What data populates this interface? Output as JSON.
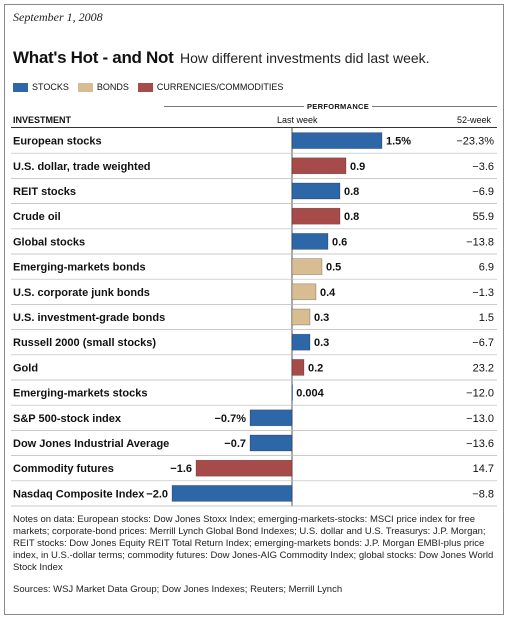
{
  "date": "September 1, 2008",
  "title": "What's Hot - and Not",
  "subtitle": "How different investments did last week.",
  "legend": [
    {
      "label": "STOCKS",
      "color": "#2e67a8"
    },
    {
      "label": "BONDS",
      "color": "#d7bd91"
    },
    {
      "label": "CURRENCIES/COMMODITIES",
      "color": "#a74a4a"
    }
  ],
  "headers": {
    "performance": "PERFORMANCE",
    "investment": "INVESTMENT",
    "last_week": "Last week",
    "week52": "52-week"
  },
  "chart_data": {
    "type": "bar",
    "orientation": "horizontal",
    "title": "What's Hot - and Not",
    "subtitle": "How different investments did last week.",
    "categories": [
      "European stocks",
      "U.S. dollar, trade weighted",
      "REIT stocks",
      "Crude oil",
      "Global stocks",
      "Emerging-markets bonds",
      "U.S. corporate junk bonds",
      "U.S. investment-grade bonds",
      "Russell 2000 (small stocks)",
      "Gold",
      "Emerging-markets stocks",
      "S&P 500-stock index",
      "Dow Jones Industrial Average",
      "Commodity futures",
      "Nasdaq Composite Index"
    ],
    "classes": [
      "stocks",
      "currencies",
      "stocks",
      "commodities",
      "stocks",
      "bonds",
      "bonds",
      "bonds",
      "stocks",
      "commodities",
      "stocks",
      "stocks",
      "stocks",
      "commodities",
      "stocks"
    ],
    "values": [
      1.5,
      0.9,
      0.8,
      0.8,
      0.6,
      0.5,
      0.4,
      0.3,
      0.3,
      0.2,
      0.004,
      -0.7,
      -0.7,
      -1.6,
      -2.0
    ],
    "value_labels": [
      "1.5%",
      "0.9",
      "0.8",
      "0.8",
      "0.6",
      "0.5",
      "0.4",
      "0.3",
      "0.3",
      "0.2",
      "0.004",
      "−0.7%",
      "−0.7",
      "−1.6",
      "−2.0"
    ],
    "week52": [
      "−23.3%",
      "−3.6",
      "−6.9",
      "55.9",
      "−13.8",
      "6.9",
      "−1.3",
      "1.5",
      "−6.7",
      "23.2",
      "−12.0",
      "−13.0",
      "−13.6",
      "14.7",
      "−8.8"
    ],
    "colors": {
      "stocks": "#2e67a8",
      "bonds": "#d7bd91",
      "currencies": "#a74a4a",
      "commodities": "#a74a4a"
    },
    "xlim": [
      -2.0,
      1.5
    ]
  },
  "notes": "Notes on data: European stocks: Dow Jones Stoxx Index; emerging-markets-stocks: MSCI price index for free markets; corporate-bond prices: Merrill Lynch Global Bond Indexes; U.S. dollar and U.S. Treasurys: J.P. Morgan; REIT stocks: Dow Jones Equity REIT Total Return Index; emerging-markets bonds: J.P. Morgan EMBI-plus price index, in U.S.-dollar terms; commodity futures: Dow Jones-AIG Commodity Index; global stocks: Dow Jones World Stock Index",
  "sources": "Sources: WSJ Market Data Group; Dow Jones Indexes; Reuters; Merrill Lynch"
}
